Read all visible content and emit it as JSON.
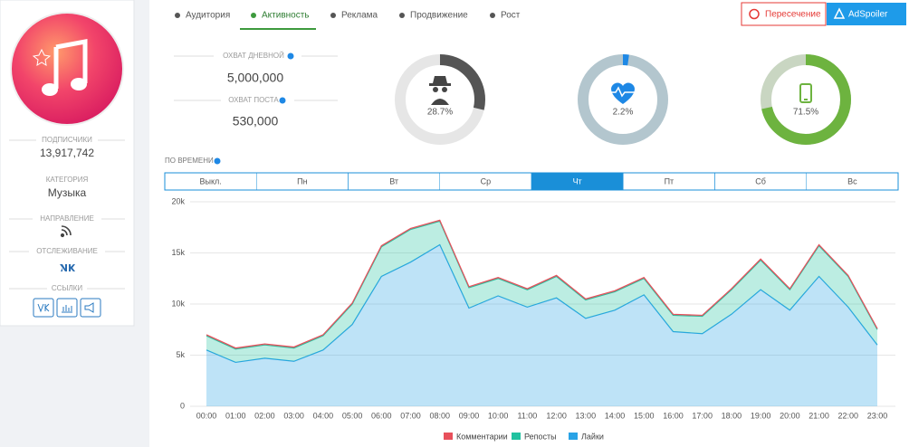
{
  "sidebar": {
    "subscribers_label": "ПОДПИСЧИКИ",
    "subscribers": "13,917,742",
    "category_label": "КАТЕГОРИЯ",
    "category": "Музыка",
    "direction_label": "НАПРАВЛЕНИЕ",
    "tracking_label": "ОТСЛЕЖИВАНИЕ",
    "links_label": "ССЫЛКИ"
  },
  "tabs": [
    "Аудитория",
    "Активность",
    "Реклама",
    "Продвижение",
    "Рост"
  ],
  "active_tab": 1,
  "buttons": [
    "Пересечение",
    "AdSpoiler"
  ],
  "reach": {
    "daily_label": "ОХВАТ ДНЕВНОЙ",
    "daily": "5,000,000",
    "post_label": "ОХВАТ ПОСТА",
    "post": "530,000"
  },
  "time_label": "ПО ВРЕМЕНИ",
  "days": [
    "Выкл.",
    "Пн",
    "Вт",
    "Ср",
    "Чт",
    "Пт",
    "Сб",
    "Вс"
  ],
  "active_day": 4,
  "chart_data": [
    {
      "type": "area",
      "categories": [
        "00:00",
        "01:00",
        "02:00",
        "03:00",
        "04:00",
        "05:00",
        "06:00",
        "07:00",
        "08:00",
        "09:00",
        "10:00",
        "11:00",
        "12:00",
        "13:00",
        "14:00",
        "15:00",
        "16:00",
        "17:00",
        "18:00",
        "19:00",
        "20:00",
        "21:00",
        "22:00",
        "23:00"
      ],
      "series": [
        {
          "name": "Комментарии",
          "color": "#e8505b",
          "values": [
            100,
            100,
            100,
            100,
            100,
            100,
            100,
            100,
            100,
            100,
            100,
            100,
            100,
            100,
            100,
            100,
            100,
            100,
            100,
            100,
            100,
            100,
            100,
            100
          ]
        },
        {
          "name": "Репосты",
          "color": "#20c2a0",
          "values": [
            1400,
            1300,
            1300,
            1300,
            1400,
            2000,
            2900,
            3200,
            2300,
            2000,
            1700,
            1700,
            2100,
            1800,
            1800,
            1600,
            1600,
            1700,
            2400,
            2900,
            2000,
            3000,
            3000,
            1500
          ]
        },
        {
          "name": "Лайки",
          "color": "#29a3e6",
          "values": [
            5500,
            4300,
            4700,
            4400,
            5500,
            8000,
            12700,
            14100,
            15800,
            9600,
            10800,
            9700,
            10600,
            8600,
            9400,
            10900,
            7300,
            7100,
            9000,
            11400,
            9400,
            12700,
            9700,
            6000
          ]
        }
      ],
      "stacked": true,
      "ylim": [
        0,
        20000
      ],
      "yticks": [
        0,
        {
          "value": 5000,
          "label": "5k"
        },
        {
          "value": 10000,
          "label": "10k"
        },
        {
          "value": 15000,
          "label": "15k"
        },
        {
          "value": 20000,
          "label": "20k"
        }
      ],
      "grid": true
    },
    {
      "type": "donut",
      "values": [
        28.7
      ],
      "value_labels": [
        "28.7%"
      ],
      "color": "#555555",
      "track": "#e6e6e6"
    },
    {
      "type": "donut",
      "values": [
        2.2
      ],
      "value_labels": [
        "2.2%"
      ],
      "color": "#1e88e5",
      "track": "#b3c6ce"
    },
    {
      "type": "donut",
      "values": [
        71.5
      ],
      "value_labels": [
        "71.5%"
      ],
      "color": "#6db33f",
      "track": "#c9d6c2"
    }
  ]
}
